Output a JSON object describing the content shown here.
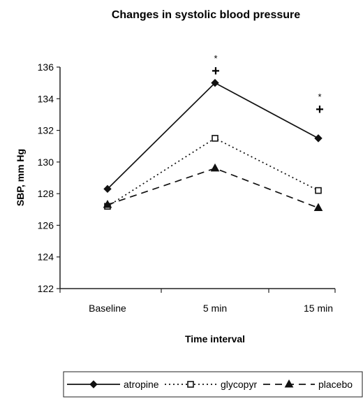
{
  "chart_data": {
    "type": "line",
    "title": "Changes in systolic blood pressure",
    "xlabel": "Time interval",
    "ylabel": "SBP, mm Hg",
    "categories": [
      "Baseline",
      "5 min",
      "15 min"
    ],
    "ylim": [
      122,
      136
    ],
    "yticks": [
      122,
      124,
      126,
      128,
      130,
      132,
      134,
      136
    ],
    "grid": false,
    "legend_position": "bottom",
    "series": [
      {
        "name": "atropine",
        "values": [
          128.3,
          135.0,
          131.5
        ],
        "marker": "diamond-filled",
        "line": "solid",
        "color": "#111111"
      },
      {
        "name": "glycopyr",
        "values": [
          127.2,
          131.5,
          128.2
        ],
        "marker": "square-open",
        "line": "dotted",
        "color": "#111111"
      },
      {
        "name": "placebo",
        "values": [
          127.3,
          129.6,
          127.1
        ],
        "marker": "triangle-filled",
        "line": "dashed",
        "color": "#111111"
      }
    ],
    "annotations": [
      {
        "category": "5 min",
        "star": "*",
        "plus": "+"
      },
      {
        "category": "15 min",
        "star": "*",
        "plus": "+"
      }
    ]
  }
}
